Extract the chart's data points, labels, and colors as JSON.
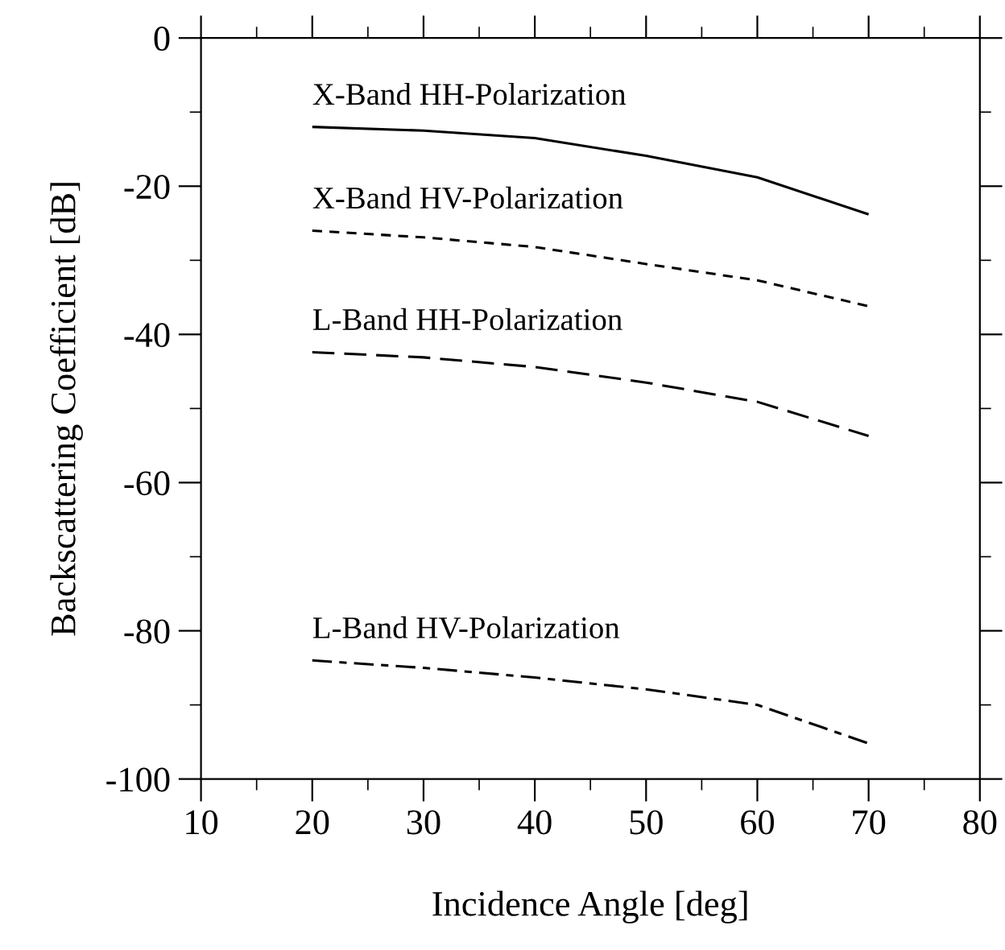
{
  "chart_data": {
    "type": "line",
    "xlabel": "Incidence Angle [deg]",
    "ylabel": "Backscattering Coefficient [dB]",
    "x": [
      20,
      30,
      40,
      50,
      60,
      70
    ],
    "series": [
      {
        "name": "X-Band HH-Polarization",
        "color": "#000000",
        "line_style": "solid",
        "values": [
          -12.0,
          -12.5,
          -13.5,
          -15.9,
          -18.8,
          -23.8
        ]
      },
      {
        "name": "X-Band HV-Polarization",
        "color": "#000000",
        "line_style": "dotted",
        "values": [
          -26.0,
          -26.9,
          -28.2,
          -30.5,
          -32.7,
          -36.2
        ]
      },
      {
        "name": "L-Band HH-Polarization",
        "color": "#000000",
        "line_style": "dashed",
        "values": [
          -42.4,
          -43.1,
          -44.4,
          -46.5,
          -49.1,
          -53.7
        ]
      },
      {
        "name": "L-Band HV-Polarization",
        "color": "#000000",
        "line_style": "dashdot",
        "values": [
          -84.0,
          -85.0,
          -86.3,
          -87.9,
          -90.0,
          -95.2
        ]
      }
    ],
    "xlim": [
      10,
      80
    ],
    "xticks": [
      10,
      20,
      30,
      40,
      50,
      60,
      70,
      80
    ],
    "ylim": [
      -100,
      0
    ],
    "yticks": [
      -100,
      -80,
      -60,
      -40,
      -20,
      0
    ],
    "grid": false,
    "legend": false,
    "marker": "none"
  }
}
